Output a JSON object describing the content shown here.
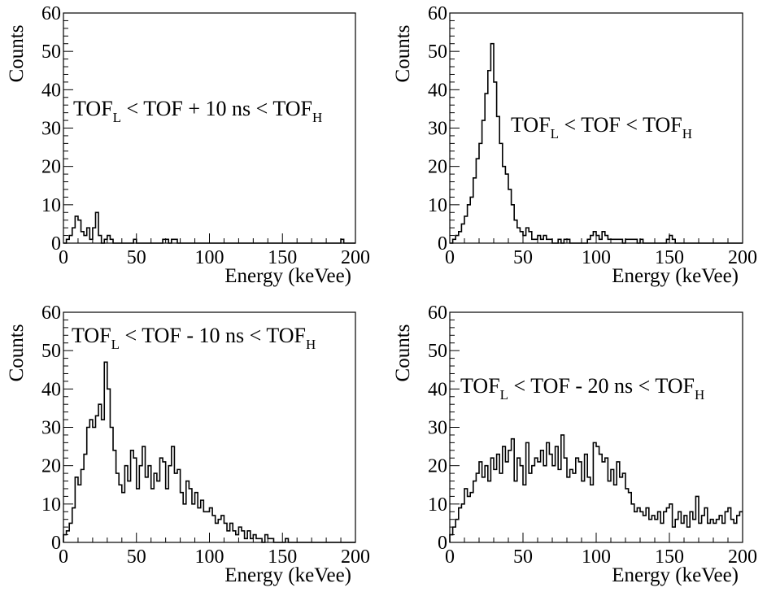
{
  "chart_data": [
    {
      "type": "histogram",
      "xlabel": "Energy (keVee)",
      "ylabel": "Counts",
      "xlim": [
        0,
        200
      ],
      "ylim": [
        0,
        60
      ],
      "x_ticks": [
        "0",
        "50",
        "100",
        "150",
        "200"
      ],
      "y_ticks": [
        "0",
        "10",
        "20",
        "30",
        "40",
        "50",
        "60"
      ],
      "annotation": {
        "pre": "TOF",
        "sub_l": "L",
        "mid": " < TOF + 10 ns < TOF",
        "sub_h": "H"
      },
      "bin_width": 2,
      "bin_start": 0,
      "values": [
        0,
        1,
        2,
        4,
        7,
        6,
        3,
        2,
        4,
        1,
        4,
        8,
        2,
        0,
        1,
        2,
        1,
        0,
        0,
        0,
        0,
        0,
        0,
        0,
        1,
        0,
        0,
        0,
        0,
        0,
        0,
        0,
        0,
        0,
        1,
        1,
        0,
        1,
        1,
        0,
        0,
        0,
        0,
        0,
        0,
        0,
        0,
        0,
        0,
        0,
        0,
        0,
        0,
        0,
        0,
        0,
        0,
        0,
        0,
        0,
        0,
        0,
        0,
        0,
        0,
        0,
        0,
        0,
        0,
        0,
        0,
        0,
        0,
        0,
        0,
        0,
        0,
        0,
        0,
        0,
        0,
        0,
        0,
        0,
        0,
        0,
        0,
        0,
        0,
        0,
        0,
        0,
        0,
        0,
        0,
        1,
        0,
        0,
        0,
        0
      ]
    },
    {
      "type": "histogram",
      "xlabel": "Energy (keVee)",
      "ylabel": "Counts",
      "xlim": [
        0,
        200
      ],
      "ylim": [
        0,
        60
      ],
      "x_ticks": [
        "0",
        "50",
        "100",
        "150",
        "200"
      ],
      "y_ticks": [
        "0",
        "10",
        "20",
        "30",
        "40",
        "50",
        "60"
      ],
      "annotation": {
        "pre": "TOF",
        "sub_l": "L",
        "mid": " < TOF < TOF",
        "sub_h": "H"
      },
      "bin_width": 2,
      "bin_start": 0,
      "values": [
        0,
        1,
        2,
        3,
        5,
        7,
        10,
        12,
        17,
        22,
        26,
        32,
        39,
        45,
        52,
        42,
        33,
        26,
        20,
        18,
        14,
        10,
        6,
        4,
        3,
        2,
        4,
        3,
        1,
        1,
        2,
        1,
        2,
        1,
        1,
        0,
        0,
        1,
        0,
        1,
        1,
        0,
        0,
        0,
        0,
        0,
        0,
        1,
        2,
        3,
        2,
        1,
        3,
        2,
        1,
        1,
        1,
        1,
        1,
        0,
        1,
        1,
        1,
        1,
        0,
        1,
        0,
        0,
        0,
        0,
        0,
        0,
        0,
        0,
        1,
        2,
        1,
        0,
        0,
        0,
        0,
        0,
        0,
        0,
        0,
        0,
        0,
        0,
        0,
        0,
        0,
        0,
        0,
        0,
        0,
        0,
        0,
        0,
        0,
        0
      ]
    },
    {
      "type": "histogram",
      "xlabel": "Energy (keVee)",
      "ylabel": "Counts",
      "xlim": [
        0,
        200
      ],
      "ylim": [
        0,
        60
      ],
      "x_ticks": [
        "0",
        "50",
        "100",
        "150",
        "200"
      ],
      "y_ticks": [
        "0",
        "10",
        "20",
        "30",
        "40",
        "50",
        "60"
      ],
      "annotation": {
        "pre": "TOF",
        "sub_l": "L",
        "mid": " < TOF - 10 ns < TOF",
        "sub_h": "H"
      },
      "bin_width": 2,
      "bin_start": 0,
      "values": [
        2,
        3,
        5,
        9,
        17,
        15,
        19,
        23,
        30,
        32,
        30,
        33,
        36,
        32,
        47,
        40,
        30,
        24,
        18,
        15,
        13,
        20,
        16,
        24,
        22,
        14,
        20,
        25,
        17,
        20,
        14,
        18,
        16,
        22,
        21,
        14,
        20,
        25,
        18,
        19,
        13,
        10,
        16,
        14,
        10,
        13,
        9,
        11,
        8,
        8,
        9,
        7,
        5,
        6,
        7,
        5,
        3,
        5,
        3,
        2,
        4,
        3,
        1,
        3,
        1,
        2,
        1,
        1,
        0,
        2,
        1,
        1,
        0,
        0,
        0,
        0,
        1,
        0,
        0,
        0,
        0,
        0,
        0,
        0,
        0,
        0,
        0,
        0,
        0,
        0,
        0,
        0,
        0,
        0,
        0,
        0,
        0,
        0,
        0,
        0
      ]
    },
    {
      "type": "histogram",
      "xlabel": "Energy (keVee)",
      "ylabel": "Counts",
      "xlim": [
        0,
        200
      ],
      "ylim": [
        0,
        60
      ],
      "x_ticks": [
        "0",
        "50",
        "100",
        "150",
        "200"
      ],
      "y_ticks": [
        "0",
        "10",
        "20",
        "30",
        "40",
        "50",
        "60"
      ],
      "annotation": {
        "pre": "TOF",
        "sub_l": "L",
        "mid": " < TOF - 20 ns < TOF",
        "sub_h": "H"
      },
      "bin_width": 2,
      "bin_start": 0,
      "values": [
        2,
        4,
        6,
        9,
        10,
        14,
        12,
        13,
        16,
        18,
        21,
        17,
        20,
        16,
        22,
        19,
        23,
        18,
        25,
        21,
        24,
        27,
        16,
        22,
        20,
        15,
        26,
        18,
        20,
        22,
        21,
        24,
        20,
        26,
        23,
        20,
        25,
        19,
        28,
        22,
        17,
        19,
        18,
        22,
        21,
        16,
        23,
        17,
        15,
        26,
        25,
        23,
        21,
        22,
        16,
        19,
        15,
        21,
        17,
        18,
        14,
        13,
        10,
        8,
        9,
        8,
        7,
        9,
        6,
        7,
        6,
        8,
        5,
        8,
        9,
        10,
        4,
        6,
        8,
        5,
        7,
        4,
        8,
        6,
        12,
        5,
        7,
        9,
        5,
        6,
        5,
        6,
        7,
        5,
        8,
        9,
        6,
        5,
        7,
        8
      ]
    }
  ]
}
